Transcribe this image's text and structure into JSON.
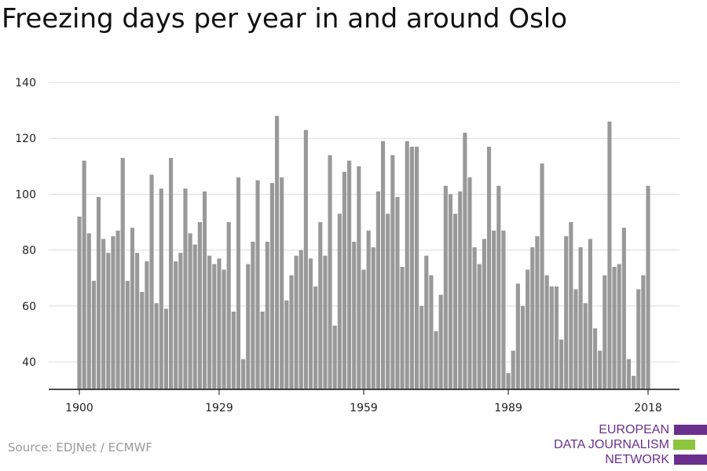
{
  "title": "Freezing days per year in and around Oslo",
  "source": "Source: EDJNet / ECMWF",
  "logo": {
    "line1": "EUROPEAN",
    "line2": "DATA JOURNALISM",
    "line3": "NETWORK"
  },
  "colors": {
    "bar": "#999999",
    "grid": "#dcdcdc",
    "axis": "#111111",
    "brand_purple": "#6b2f8f",
    "brand_green": "#8cc63f"
  },
  "chart_data": {
    "type": "bar",
    "title": "Freezing days per year in and around Oslo",
    "xlabel": "",
    "ylabel": "",
    "ylim": [
      30,
      140
    ],
    "yticks": [
      40,
      60,
      80,
      100,
      120,
      140
    ],
    "xticks": [
      1900,
      1929,
      1959,
      1989,
      2018
    ],
    "grid": true,
    "x": [
      1900,
      1901,
      1902,
      1903,
      1904,
      1905,
      1906,
      1907,
      1908,
      1909,
      1910,
      1911,
      1912,
      1913,
      1914,
      1915,
      1916,
      1917,
      1918,
      1919,
      1920,
      1921,
      1922,
      1923,
      1924,
      1925,
      1926,
      1927,
      1928,
      1929,
      1930,
      1931,
      1932,
      1933,
      1934,
      1935,
      1936,
      1937,
      1938,
      1939,
      1940,
      1941,
      1942,
      1943,
      1944,
      1945,
      1946,
      1947,
      1948,
      1949,
      1950,
      1951,
      1952,
      1953,
      1954,
      1955,
      1956,
      1957,
      1958,
      1959,
      1960,
      1961,
      1962,
      1963,
      1964,
      1965,
      1966,
      1967,
      1968,
      1969,
      1970,
      1971,
      1972,
      1973,
      1974,
      1975,
      1976,
      1977,
      1978,
      1979,
      1980,
      1981,
      1982,
      1983,
      1984,
      1985,
      1986,
      1987,
      1988,
      1989,
      1990,
      1991,
      1992,
      1993,
      1994,
      1995,
      1996,
      1997,
      1998,
      1999,
      2000,
      2001,
      2002,
      2003,
      2004,
      2005,
      2006,
      2007,
      2008,
      2009,
      2010,
      2011,
      2012,
      2013,
      2014,
      2015,
      2016,
      2017,
      2018
    ],
    "values": [
      92,
      112,
      86,
      69,
      99,
      84,
      79,
      85,
      87,
      113,
      69,
      88,
      79,
      65,
      76,
      107,
      61,
      102,
      59,
      113,
      76,
      79,
      102,
      86,
      82,
      90,
      101,
      78,
      75,
      77,
      73,
      90,
      58,
      106,
      41,
      75,
      83,
      105,
      58,
      83,
      104,
      128,
      106,
      62,
      71,
      78,
      80,
      123,
      77,
      67,
      90,
      78,
      114,
      53,
      93,
      108,
      112,
      83,
      110,
      73,
      87,
      81,
      101,
      119,
      93,
      114,
      99,
      74,
      119,
      117,
      117,
      60,
      78,
      71,
      51,
      64,
      103,
      100,
      93,
      101,
      122,
      106,
      81,
      75,
      84,
      117,
      87,
      103,
      87,
      36,
      44,
      68,
      60,
      73,
      81,
      85,
      111,
      71,
      67,
      67,
      48,
      85,
      90,
      66,
      81,
      61,
      84,
      52,
      44,
      71,
      126,
      74,
      75,
      88,
      41,
      35,
      66,
      71,
      103
    ]
  }
}
